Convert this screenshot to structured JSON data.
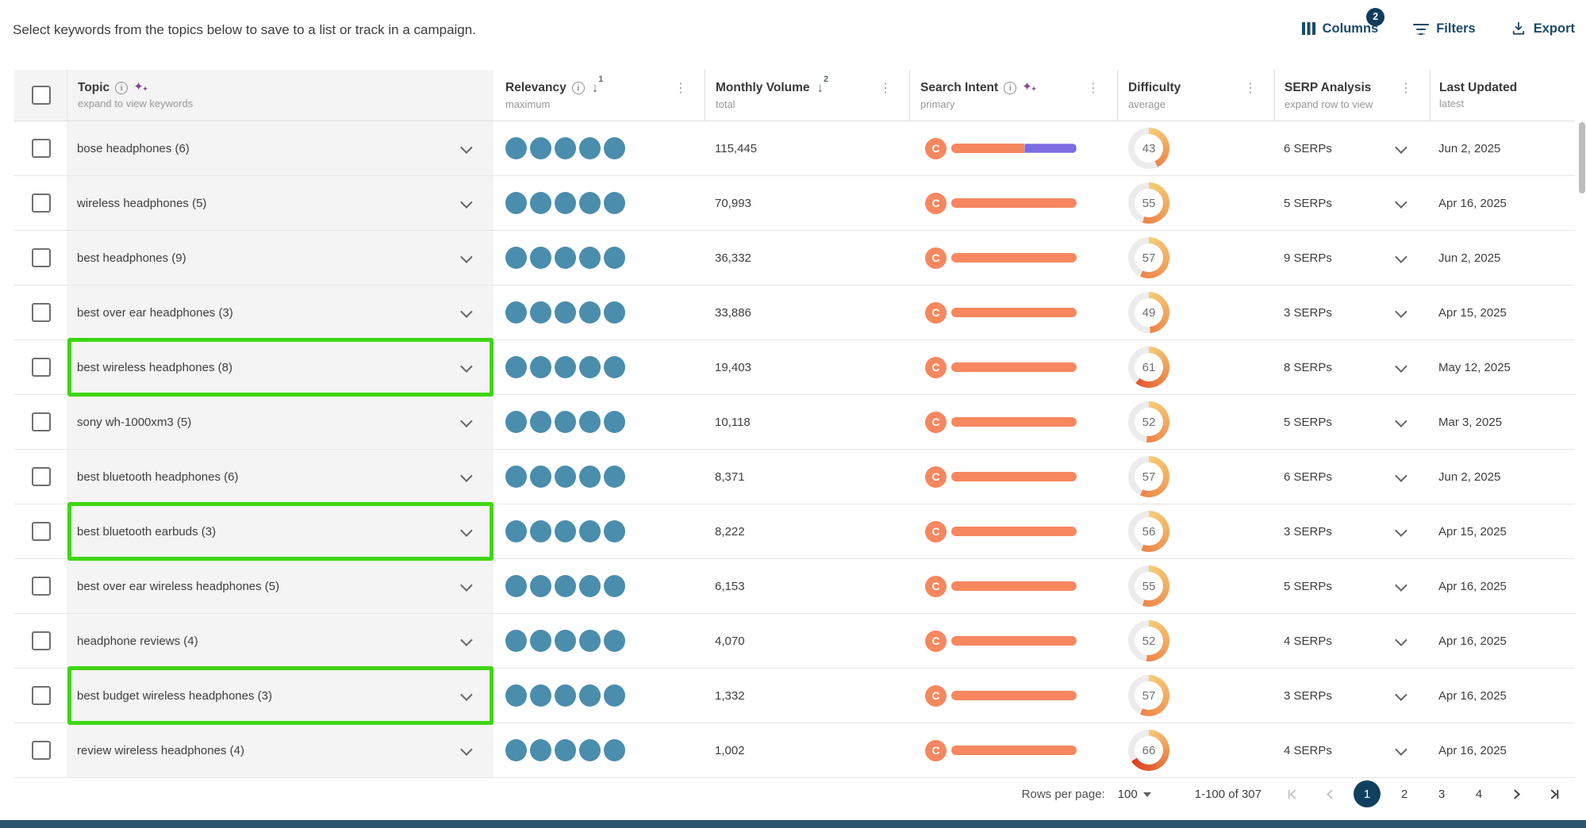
{
  "intro": "Select keywords from the topics below to save to a list or track in a campaign.",
  "toolbar": {
    "columns_label": "Columns",
    "columns_badge": "2",
    "filters_label": "Filters",
    "export_label": "Export"
  },
  "table": {
    "columns": [
      {
        "label": "Topic",
        "subtitle": "expand to view keywords"
      },
      {
        "label": "Relevancy",
        "subtitle": "maximum",
        "sort": "1"
      },
      {
        "label": "Monthly Volume",
        "subtitle": "total",
        "sort": "2"
      },
      {
        "label": "Search Intent",
        "subtitle": "primary"
      },
      {
        "label": "Difficulty",
        "subtitle": "average"
      },
      {
        "label": "SERP Analysis",
        "subtitle": "expand row to view"
      },
      {
        "label": "Last Updated",
        "subtitle": "latest"
      }
    ],
    "rows": [
      {
        "topic": "bose headphones (6)",
        "relevancy": 5,
        "volume": "115,445",
        "intent_primary": "C",
        "intent_split": [
          {
            "color": "intent_orange",
            "pct": 58
          },
          {
            "color": "intent_purple",
            "pct": 42
          }
        ],
        "difficulty": 43,
        "serps": "6 SERPs",
        "updated": "Jun 2, 2025",
        "highlighted": false
      },
      {
        "topic": "wireless headphones (5)",
        "relevancy": 5,
        "volume": "70,993",
        "intent_primary": "C",
        "intent_split": [
          {
            "color": "intent_orange",
            "pct": 100
          }
        ],
        "difficulty": 55,
        "serps": "5 SERPs",
        "updated": "Apr 16, 2025",
        "highlighted": false
      },
      {
        "topic": "best headphones (9)",
        "relevancy": 5,
        "volume": "36,332",
        "intent_primary": "C",
        "intent_split": [
          {
            "color": "intent_orange",
            "pct": 100
          }
        ],
        "difficulty": 57,
        "serps": "9 SERPs",
        "updated": "Jun 2, 2025",
        "highlighted": false
      },
      {
        "topic": "best over ear headphones (3)",
        "relevancy": 5,
        "volume": "33,886",
        "intent_primary": "C",
        "intent_split": [
          {
            "color": "intent_orange",
            "pct": 100
          }
        ],
        "difficulty": 49,
        "serps": "3 SERPs",
        "updated": "Apr 15, 2025",
        "highlighted": false
      },
      {
        "topic": "best wireless headphones (8)",
        "relevancy": 5,
        "volume": "19,403",
        "intent_primary": "C",
        "intent_split": [
          {
            "color": "intent_orange",
            "pct": 100
          }
        ],
        "difficulty": 61,
        "serps": "8 SERPs",
        "updated": "May 12, 2025",
        "highlighted": true
      },
      {
        "topic": "sony wh-1000xm3 (5)",
        "relevancy": 5,
        "volume": "10,118",
        "intent_primary": "C",
        "intent_split": [
          {
            "color": "intent_orange",
            "pct": 100
          }
        ],
        "difficulty": 52,
        "serps": "5 SERPs",
        "updated": "Mar 3, 2025",
        "highlighted": false
      },
      {
        "topic": "best bluetooth headphones (6)",
        "relevancy": 5,
        "volume": "8,371",
        "intent_primary": "C",
        "intent_split": [
          {
            "color": "intent_orange",
            "pct": 100
          }
        ],
        "difficulty": 57,
        "serps": "6 SERPs",
        "updated": "Jun 2, 2025",
        "highlighted": false
      },
      {
        "topic": "best bluetooth earbuds (3)",
        "relevancy": 5,
        "volume": "8,222",
        "intent_primary": "C",
        "intent_split": [
          {
            "color": "intent_orange",
            "pct": 100
          }
        ],
        "difficulty": 56,
        "serps": "3 SERPs",
        "updated": "Apr 15, 2025",
        "highlighted": true
      },
      {
        "topic": "best over ear wireless headphones (5)",
        "relevancy": 5,
        "volume": "6,153",
        "intent_primary": "C",
        "intent_split": [
          {
            "color": "intent_orange",
            "pct": 100
          }
        ],
        "difficulty": 55,
        "serps": "5 SERPs",
        "updated": "Apr 16, 2025",
        "highlighted": false
      },
      {
        "topic": "headphone reviews (4)",
        "relevancy": 5,
        "volume": "4,070",
        "intent_primary": "C",
        "intent_split": [
          {
            "color": "intent_orange",
            "pct": 100
          }
        ],
        "difficulty": 52,
        "serps": "4 SERPs",
        "updated": "Apr 16, 2025",
        "highlighted": false
      },
      {
        "topic": "best budget wireless headphones (3)",
        "relevancy": 5,
        "volume": "1,332",
        "intent_primary": "C",
        "intent_split": [
          {
            "color": "intent_orange",
            "pct": 100
          }
        ],
        "difficulty": 57,
        "serps": "3 SERPs",
        "updated": "Apr 16, 2025",
        "highlighted": true
      },
      {
        "topic": "review wireless headphones (4)",
        "relevancy": 5,
        "volume": "1,002",
        "intent_primary": "C",
        "intent_split": [
          {
            "color": "intent_orange",
            "pct": 100
          }
        ],
        "difficulty": 66,
        "serps": "4 SERPs",
        "updated": "Apr 16, 2025",
        "highlighted": false
      }
    ]
  },
  "pagination": {
    "rows_per_page_label": "Rows per page:",
    "rows_per_page_value": "100",
    "range_label": "1-100 of 307",
    "pages": [
      "1",
      "2",
      "3",
      "4"
    ],
    "active_page": "1"
  },
  "colors": {
    "accent_navy": "#1b4a68",
    "badge_navy": "#0f3c5c",
    "dot_teal": "#4a8dad",
    "intent_orange": "#f6875f",
    "intent_purple": "#7b6ce1",
    "highlight_green": "#40d613",
    "donut_track": "#ececec",
    "donut_start": "#f6cd77",
    "donut_mid": "#ee8449",
    "donut_high": "#e4572e",
    "donut_max": "#dd3b1f",
    "active_page_bg": "#10405e"
  }
}
